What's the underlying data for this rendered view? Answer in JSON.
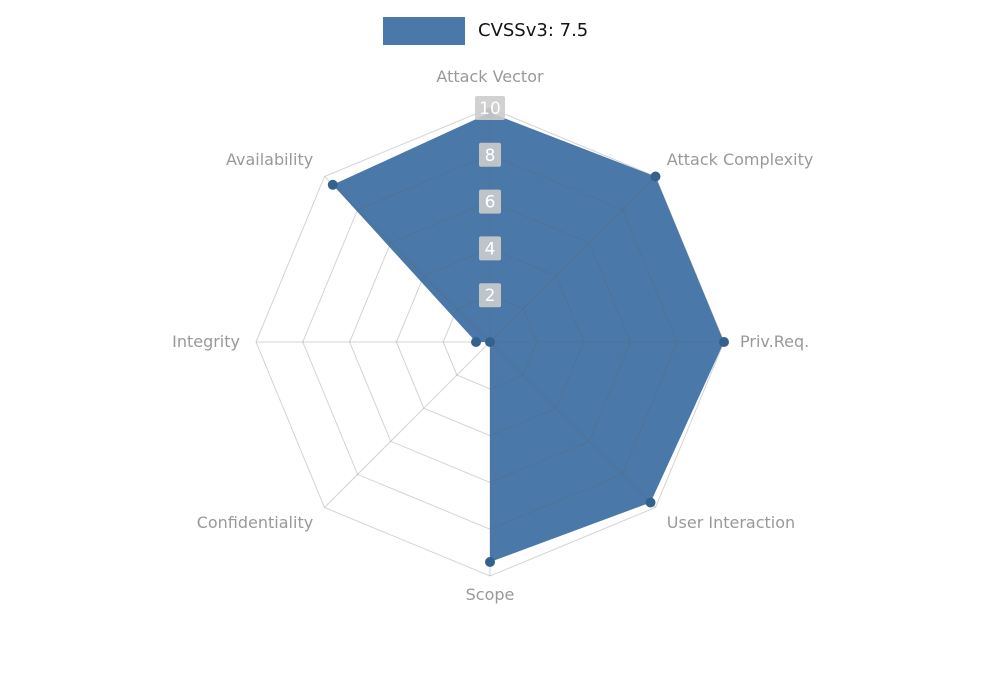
{
  "chart_data": {
    "type": "radar",
    "title": "",
    "legend": {
      "label": "CVSSv3: 7.5"
    },
    "categories": [
      "Attack Vector",
      "Attack Complexity",
      "Priv.Req.",
      "User Interaction",
      "Scope",
      "Confidentiality",
      "Integrity",
      "Availability"
    ],
    "values": [
      9.8,
      10,
      10,
      9.7,
      9.4,
      0,
      0.6,
      9.5
    ],
    "ticks": [
      2,
      4,
      6,
      8,
      10
    ],
    "rmax": 10,
    "grid": "spiderweb",
    "legend_position": "top",
    "colors": {
      "series_fill": "#4a78a8",
      "vertex_dot": "#35618f",
      "grid_line": "#666666",
      "axis_label": "#999999",
      "tick_chip_bg": "#cccccc",
      "tick_chip_text": "#ffffff",
      "legend_text": "#141414"
    }
  }
}
